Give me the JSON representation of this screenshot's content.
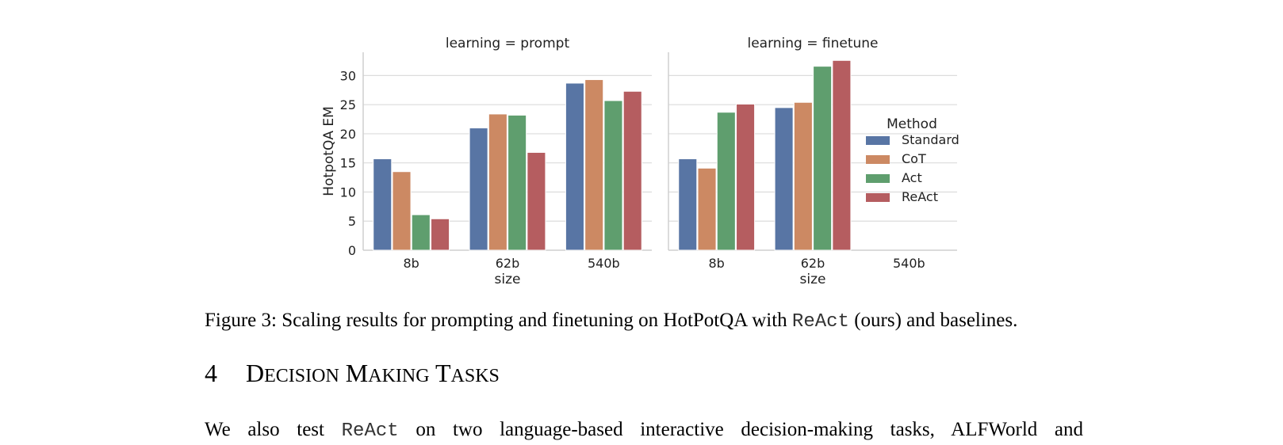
{
  "chart_data": {
    "type": "bar",
    "ylabel": "HotpotQA EM",
    "xlabel": "size",
    "yticks": [
      0,
      5,
      10,
      15,
      20,
      25,
      30
    ],
    "ylim": [
      0,
      34
    ],
    "grid": "horizontal",
    "categories": [
      "8b",
      "62b",
      "540b"
    ],
    "legend": {
      "title": "Method",
      "placement": "right",
      "entries": [
        "Standard",
        "CoT",
        "Act",
        "ReAct"
      ]
    },
    "colors": {
      "Standard": "#5875a4",
      "CoT": "#cc8963",
      "Act": "#5f9e6e",
      "ReAct": "#b55d60"
    },
    "panels": [
      {
        "title": "learning = prompt",
        "series": [
          {
            "name": "Standard",
            "values": [
              15.7,
              21.0,
              28.7
            ]
          },
          {
            "name": "CoT",
            "values": [
              13.5,
              23.4,
              29.3
            ]
          },
          {
            "name": "Act",
            "values": [
              6.1,
              23.2,
              25.7
            ]
          },
          {
            "name": "ReAct",
            "values": [
              5.4,
              16.8,
              27.3
            ]
          }
        ]
      },
      {
        "title": "learning = finetune",
        "series": [
          {
            "name": "Standard",
            "values": [
              15.7,
              24.5,
              null
            ]
          },
          {
            "name": "CoT",
            "values": [
              14.1,
              25.4,
              null
            ]
          },
          {
            "name": "Act",
            "values": [
              23.7,
              31.6,
              null
            ]
          },
          {
            "name": "ReAct",
            "values": [
              25.1,
              32.6,
              null
            ]
          }
        ]
      }
    ]
  },
  "caption": {
    "label": "Figure 3:",
    "text_before": "Scaling results for prompting and finetuning on HotPotQA with",
    "method": "ReAct",
    "text_after": "(ours) and baselines."
  },
  "section": {
    "number": "4",
    "words": [
      {
        "first": "D",
        "rest": "ECISION"
      },
      {
        "first": "M",
        "rest": "AKING"
      },
      {
        "first": "T",
        "rest": "ASKS"
      }
    ]
  },
  "body": {
    "text_before": "We also test",
    "method": "ReAct",
    "text_after": "on two language-based interactive decision-making tasks, ALFWorld and"
  }
}
